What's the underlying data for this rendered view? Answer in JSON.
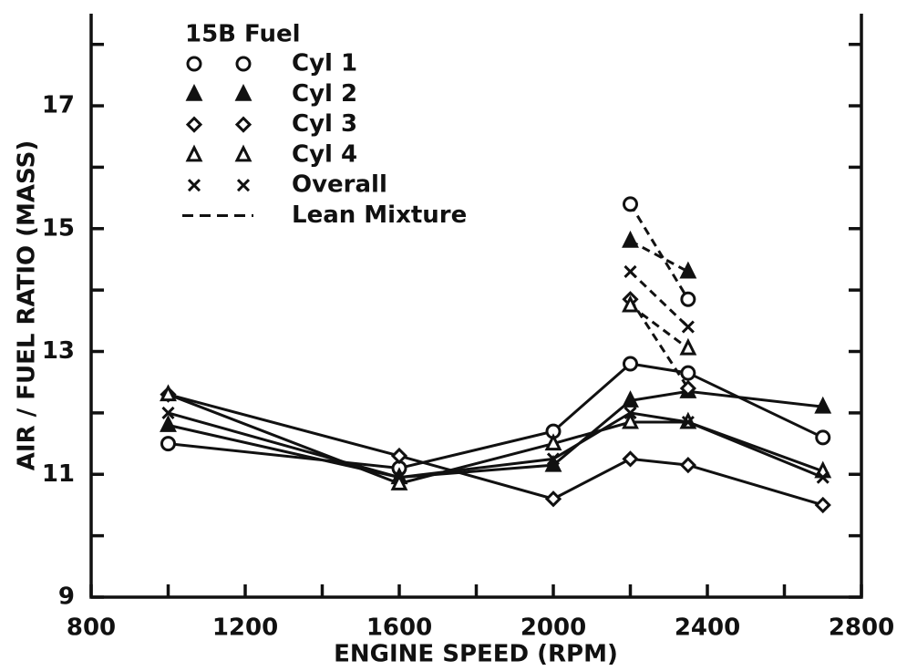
{
  "chart_data": {
    "type": "line",
    "x_label": "ENGINE SPEED (RPM)",
    "y_label": "AIR / FUEL RATIO (MASS)",
    "legend_title": "15B Fuel",
    "lean_label": "Lean Mixture",
    "xlim": [
      800,
      2800
    ],
    "xticks": [
      800,
      1200,
      1600,
      2000,
      2400,
      2800
    ],
    "xminorticks": [
      1000,
      1400,
      1800,
      2200,
      2600
    ],
    "ylim": [
      9,
      18.5
    ],
    "yticks": [
      9,
      11,
      13,
      15,
      17
    ],
    "yminorticks": [
      10,
      12,
      14,
      16,
      18
    ],
    "x": [
      1000,
      1600,
      2000,
      2200,
      2350,
      2700
    ],
    "lean_x": [
      2200,
      2350
    ],
    "series": [
      {
        "name": "Cyl 1",
        "marker": "circle",
        "color": "#111",
        "values": [
          11.5,
          11.1,
          11.7,
          12.8,
          12.65,
          11.6
        ],
        "lean_values": [
          15.4,
          13.85
        ]
      },
      {
        "name": "Cyl 2",
        "marker": "filled-triangle",
        "color": "#111",
        "values": [
          11.8,
          10.95,
          11.15,
          12.2,
          12.35,
          12.1
        ],
        "lean_values": [
          14.8,
          14.3
        ]
      },
      {
        "name": "Cyl 3",
        "marker": "diamond",
        "color": "#111",
        "values": [
          12.3,
          11.3,
          10.6,
          11.25,
          11.15,
          10.5
        ],
        "lean_values": [
          13.85,
          12.4
        ]
      },
      {
        "name": "Cyl 4",
        "marker": "triangle",
        "color": "#111",
        "values": [
          12.3,
          10.85,
          11.5,
          11.85,
          11.85,
          11.05
        ],
        "lean_values": [
          13.75,
          13.05
        ]
      },
      {
        "name": "Overall",
        "marker": "cross",
        "color": "#111",
        "values": [
          12.0,
          10.95,
          11.25,
          12.0,
          11.85,
          10.95
        ],
        "lean_values": [
          14.3,
          13.4
        ]
      }
    ]
  }
}
